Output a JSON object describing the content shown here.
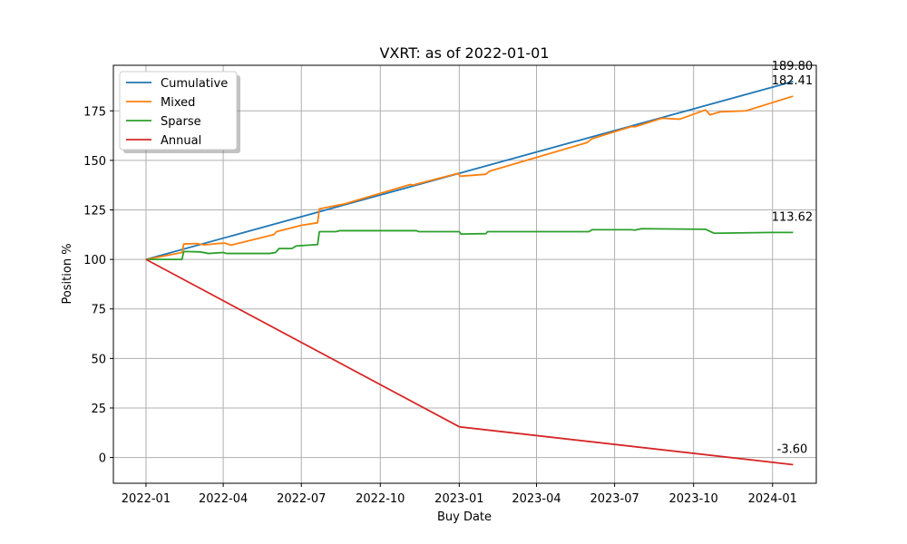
{
  "chart_data": {
    "type": "line",
    "title": "VXRT: as of 2022-01-01",
    "xlabel": "Buy Date",
    "ylabel": "Position %",
    "x_type": "date",
    "xlim": [
      "2021-11-24",
      "2024-02-21"
    ],
    "ylim": [
      -13,
      198
    ],
    "grid": true,
    "legend_position": "top-left",
    "x_ticks": [
      {
        "date": "2022-01-01",
        "label": "2022-01"
      },
      {
        "date": "2022-04-01",
        "label": "2022-04"
      },
      {
        "date": "2022-07-01",
        "label": "2022-07"
      },
      {
        "date": "2022-10-01",
        "label": "2022-10"
      },
      {
        "date": "2023-01-01",
        "label": "2023-01"
      },
      {
        "date": "2023-04-01",
        "label": "2023-04"
      },
      {
        "date": "2023-07-01",
        "label": "2023-07"
      },
      {
        "date": "2023-10-01",
        "label": "2023-10"
      },
      {
        "date": "2024-01-01",
        "label": "2024-01"
      }
    ],
    "y_ticks": [
      0,
      25,
      50,
      75,
      100,
      125,
      150,
      175
    ],
    "series": [
      {
        "name": "Cumulative",
        "color": "#1f77b4",
        "end_label": "189.80",
        "end_label_anchor": "above",
        "points": [
          [
            "2022-01-01",
            100.0
          ],
          [
            "2024-01-25",
            189.8
          ]
        ]
      },
      {
        "name": "Mixed",
        "color": "#ff7f0e",
        "end_label": "182.41",
        "end_label_anchor": "above",
        "points": [
          [
            "2022-01-01",
            100.0
          ],
          [
            "2022-02-12",
            103.5
          ],
          [
            "2022-02-14",
            107.8
          ],
          [
            "2022-03-01",
            108.0
          ],
          [
            "2022-03-10",
            107.3
          ],
          [
            "2022-03-25",
            108.0
          ],
          [
            "2022-04-03",
            108.2
          ],
          [
            "2022-04-10",
            107.2
          ],
          [
            "2022-05-30",
            112.5
          ],
          [
            "2022-06-02",
            114.0
          ],
          [
            "2022-06-25",
            116.5
          ],
          [
            "2022-07-01",
            117.2
          ],
          [
            "2022-07-20",
            118.5
          ],
          [
            "2022-07-22",
            125.5
          ],
          [
            "2022-08-20",
            128.0
          ],
          [
            "2022-11-05",
            137.8
          ],
          [
            "2022-11-08",
            137.5
          ],
          [
            "2022-12-31",
            143.5
          ],
          [
            "2023-01-02",
            142.0
          ],
          [
            "2023-02-01",
            143.0
          ],
          [
            "2023-02-05",
            144.5
          ],
          [
            "2023-05-30",
            159.0
          ],
          [
            "2023-06-05",
            161.0
          ],
          [
            "2023-07-20",
            167.0
          ],
          [
            "2023-07-25",
            167.0
          ],
          [
            "2023-08-25",
            171.3
          ],
          [
            "2023-09-15",
            170.8
          ],
          [
            "2023-10-15",
            175.5
          ],
          [
            "2023-10-20",
            173.0
          ],
          [
            "2023-11-01",
            174.5
          ],
          [
            "2023-12-01",
            175.0
          ],
          [
            "2024-01-25",
            182.41
          ]
        ]
      },
      {
        "name": "Sparse",
        "color": "#2ca02c",
        "end_label": "113.62",
        "end_label_anchor": "above",
        "points": [
          [
            "2022-01-01",
            100.0
          ],
          [
            "2022-02-12",
            100.0
          ],
          [
            "2022-02-14",
            104.0
          ],
          [
            "2022-03-05",
            103.8
          ],
          [
            "2022-03-15",
            103.0
          ],
          [
            "2022-04-01",
            103.5
          ],
          [
            "2022-04-05",
            103.0
          ],
          [
            "2022-05-25",
            103.0
          ],
          [
            "2022-06-01",
            103.5
          ],
          [
            "2022-06-05",
            105.5
          ],
          [
            "2022-06-20",
            105.5
          ],
          [
            "2022-06-25",
            106.8
          ],
          [
            "2022-07-20",
            107.5
          ],
          [
            "2022-07-22",
            114.0
          ],
          [
            "2022-08-10",
            114.0
          ],
          [
            "2022-08-15",
            114.5
          ],
          [
            "2022-11-12",
            114.5
          ],
          [
            "2022-11-15",
            114.0
          ],
          [
            "2023-01-01",
            114.0
          ],
          [
            "2023-01-03",
            112.8
          ],
          [
            "2023-02-01",
            113.0
          ],
          [
            "2023-02-03",
            114.0
          ],
          [
            "2023-06-01",
            114.0
          ],
          [
            "2023-06-05",
            115.0
          ],
          [
            "2023-07-20",
            115.0
          ],
          [
            "2023-07-25",
            114.8
          ],
          [
            "2023-08-01",
            115.5
          ],
          [
            "2023-10-15",
            115.2
          ],
          [
            "2023-10-25",
            113.2
          ],
          [
            "2023-12-31",
            113.6
          ],
          [
            "2024-01-25",
            113.62
          ]
        ]
      },
      {
        "name": "Annual",
        "color": "#d62728",
        "end_label": "-3.60",
        "end_label_anchor": "above",
        "points": [
          [
            "2022-01-01",
            100.0
          ],
          [
            "2023-01-01",
            15.5
          ],
          [
            "2024-01-25",
            -3.6
          ]
        ]
      }
    ]
  }
}
